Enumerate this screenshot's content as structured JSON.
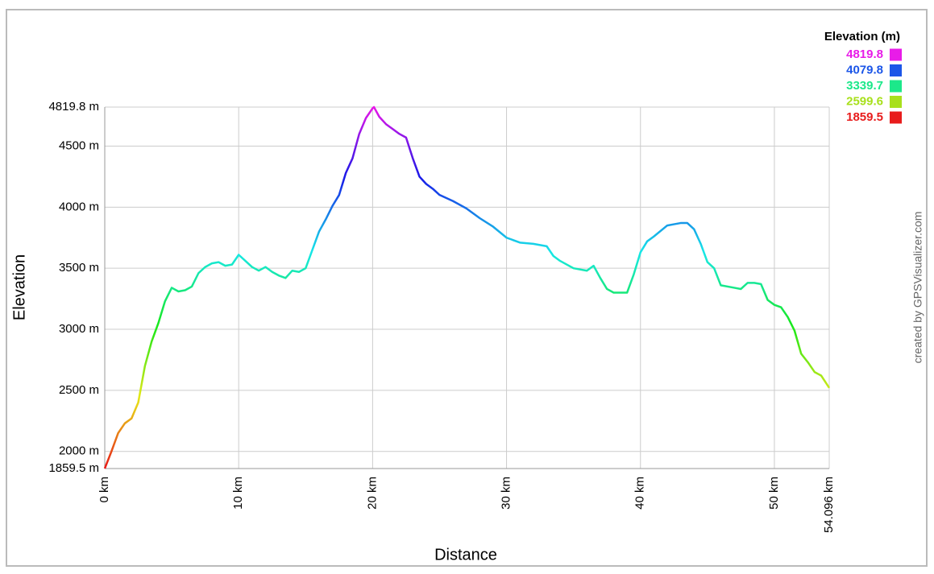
{
  "chart_data": {
    "type": "line",
    "y_label": "Elevation",
    "x_label": "Distance",
    "credit": "created by GPSVisualizer.com",
    "x": [
      0,
      0.5,
      1,
      1.5,
      2,
      2.5,
      3,
      3.5,
      4,
      4.5,
      5,
      5.5,
      6,
      6.5,
      7,
      7.5,
      8,
      8.5,
      9,
      9.5,
      10,
      10.5,
      11,
      11.5,
      12,
      12.5,
      13,
      13.5,
      14,
      14.5,
      15,
      15.5,
      16,
      16.5,
      17,
      17.5,
      18,
      18.5,
      19,
      19.5,
      20,
      20.1,
      20.5,
      21,
      21.5,
      22,
      22.5,
      23,
      23.5,
      24,
      24.5,
      25,
      26,
      27,
      28,
      29,
      30,
      31,
      32,
      33,
      33.5,
      34,
      35,
      36,
      36.5,
      37,
      37.5,
      38,
      39,
      39.5,
      40,
      40.5,
      41,
      42,
      42.5,
      43,
      43.5,
      44,
      44.5,
      45,
      45.5,
      46,
      47,
      47.5,
      48,
      48.5,
      49,
      49.5,
      50,
      50.5,
      51,
      51.5,
      52,
      52.5,
      53,
      53.5,
      54.096
    ],
    "series": [
      {
        "name": "Elevation",
        "values": [
          1860,
          2000,
          2150,
          2230,
          2270,
          2400,
          2700,
          2900,
          3050,
          3230,
          3340,
          3310,
          3320,
          3350,
          3460,
          3510,
          3540,
          3550,
          3520,
          3530,
          3610,
          3560,
          3510,
          3480,
          3510,
          3470,
          3440,
          3420,
          3480,
          3470,
          3500,
          3650,
          3800,
          3900,
          4010,
          4100,
          4280,
          4400,
          4600,
          4730,
          4810,
          4819.8,
          4740,
          4680,
          4640,
          4600,
          4570,
          4400,
          4250,
          4190,
          4150,
          4100,
          4050,
          3990,
          3910,
          3840,
          3750,
          3710,
          3700,
          3680,
          3600,
          3560,
          3500,
          3480,
          3520,
          3420,
          3330,
          3300,
          3300,
          3450,
          3630,
          3720,
          3760,
          3850,
          3860,
          3870,
          3870,
          3820,
          3700,
          3550,
          3500,
          3360,
          3340,
          3330,
          3380,
          3380,
          3370,
          3240,
          3200,
          3180,
          3100,
          2990,
          2800,
          2730,
          2650,
          2620,
          2520
        ]
      }
    ],
    "xlim": [
      0,
      54.096
    ],
    "ylim": [
      1859.5,
      4819.8
    ],
    "xticks": [
      {
        "value": 0,
        "label": "0 km"
      },
      {
        "value": 10,
        "label": "10 km"
      },
      {
        "value": 20,
        "label": "20 km"
      },
      {
        "value": 30,
        "label": "30 km"
      },
      {
        "value": 40,
        "label": "40 km"
      },
      {
        "value": 50,
        "label": "50 km"
      },
      {
        "value": 54.096,
        "label": "54.096 km"
      }
    ],
    "yticks": [
      {
        "value": 1859.5,
        "label": "1859.5 m"
      },
      {
        "value": 2000,
        "label": "2000 m"
      },
      {
        "value": 2500,
        "label": "2500 m"
      },
      {
        "value": 3000,
        "label": "3000 m"
      },
      {
        "value": 3500,
        "label": "3500 m"
      },
      {
        "value": 4000,
        "label": "4000 m"
      },
      {
        "value": 4500,
        "label": "4500 m"
      },
      {
        "value": 4819.8,
        "label": "4819.8 m"
      }
    ],
    "grid": true,
    "color_scale": {
      "title": "Elevation (m)",
      "stops": [
        {
          "value": 4819.8,
          "color": "#e81ce8"
        },
        {
          "value": 4079.8,
          "color": "#1c56e8"
        },
        {
          "value": 3339.7,
          "color": "#1ce88a"
        },
        {
          "value": 2599.6,
          "color": "#a8e01c"
        },
        {
          "value": 1859.5,
          "color": "#e81c1c"
        }
      ]
    }
  }
}
